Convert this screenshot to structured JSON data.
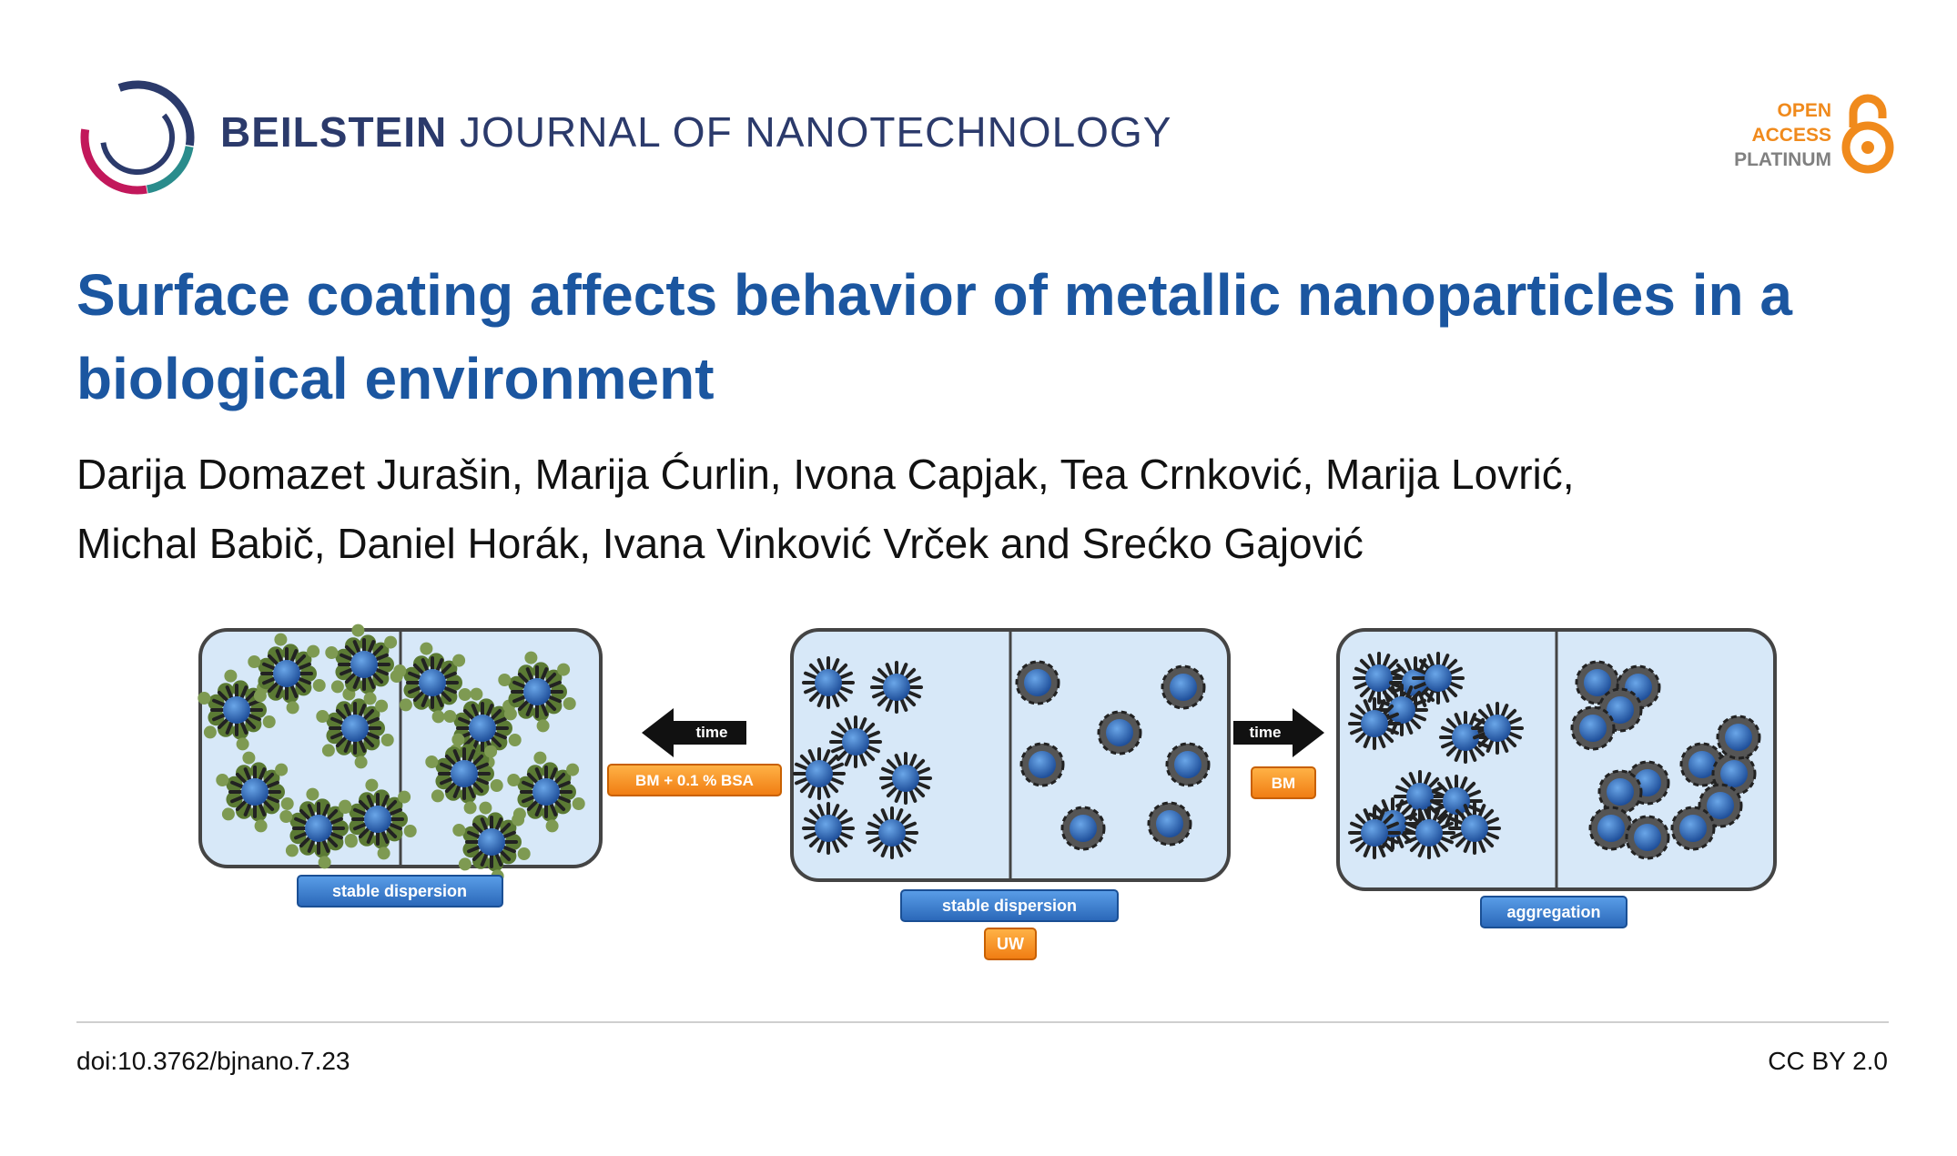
{
  "header": {
    "journal_brand": "BEILSTEIN",
    "journal_rest": "JOURNAL OF NANOTECHNOLOGY",
    "open_access": [
      "OPEN",
      "ACCESS",
      "PLATINUM"
    ],
    "colors": {
      "brand_navy": "#2b3a6b",
      "title_blue": "#1b56a0",
      "oa_orange": "#f08a1c"
    }
  },
  "article": {
    "title": "Surface coating affects behavior of metallic nanoparticles in a biological environment",
    "authors_line1": "Darija Domazet Jurašin, Marija Ćurlin, Ivona Capjak, Tea Crnković, Marija Lovrić,",
    "authors_line2": "Michal Babič, Daniel Horák, Ivana Vinković Vrček and Srećko Gajović"
  },
  "graphic": {
    "left_panel_label": "stable dispersion",
    "center_panel_label": "stable dispersion",
    "center_panel_sublabel": "UW",
    "right_panel_label": "aggregation",
    "left_arrow_text": "time",
    "left_arrow_label": "BM + 0.1 % BSA",
    "right_arrow_text": "time",
    "right_arrow_label": "BM"
  },
  "footer": {
    "doi": "doi:10.3762/bjnano.7.23",
    "license": "CC BY 2.0"
  }
}
